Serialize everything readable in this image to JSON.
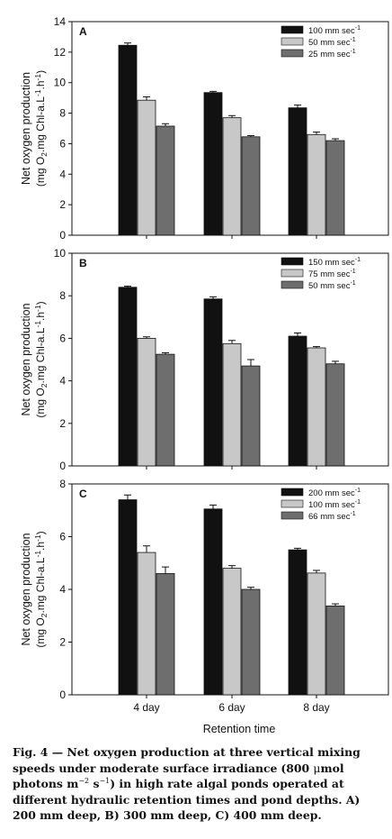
{
  "figure": {
    "ylabel_line1": "Net oxygen production",
    "ylabel_line2": "(mg O",
    "ylabel_sub": "2",
    "ylabel_line2b": ".mg Chl-a.L",
    "ylabel_sup1": "-1",
    "ylabel_line2c": ".h",
    "ylabel_sup2": "-1",
    "ylabel_end": ")",
    "xlabel": "Retention time"
  },
  "caption": {
    "label": "Fig. 4",
    "dash": " — ",
    "line1": "Net oxygen production at three vertical mixing speeds under moderate surface irradiance",
    "line2_pre": "(800 ",
    "mu": "μ",
    "line2_mid": "mol photons m",
    "sup_a": "−2",
    "s": " s",
    "sup_b": "−1",
    "line2_post": ") in high rate algal ponds operated at different hydraulic retention times and pond depths. A) 200 mm deep, B) 300 mm deep, C) 400 mm deep."
  },
  "chart_data": [
    {
      "type": "bar",
      "panel": "A",
      "categories": [
        "4 day",
        "6 day",
        "8 day"
      ],
      "ylim": [
        0,
        14
      ],
      "yticks": [
        0,
        2,
        4,
        6,
        8,
        10,
        12,
        14
      ],
      "legend_position": "top-right",
      "series": [
        {
          "name": "100 mm sec",
          "name_sup": "-1",
          "color": "#111111",
          "values": [
            12.45,
            9.35,
            8.35
          ],
          "errors": [
            0.15,
            0.08,
            0.18
          ]
        },
        {
          "name": "50 mm sec",
          "name_sup": "-1",
          "color": "#c8c8c8",
          "values": [
            8.85,
            7.7,
            6.6
          ],
          "errors": [
            0.22,
            0.14,
            0.16
          ]
        },
        {
          "name": "25 mm sec",
          "name_sup": "-1",
          "color": "#6e6e6e",
          "values": [
            7.15,
            6.45,
            6.2
          ],
          "errors": [
            0.16,
            0.08,
            0.12
          ]
        }
      ]
    },
    {
      "type": "bar",
      "panel": "B",
      "categories": [
        "4 day",
        "6 day",
        "8 day"
      ],
      "ylim": [
        0,
        10
      ],
      "yticks": [
        0,
        2,
        4,
        6,
        8,
        10
      ],
      "legend_position": "top-right",
      "series": [
        {
          "name": "150 mm sec",
          "name_sup": "-1",
          "color": "#111111",
          "values": [
            8.4,
            7.85,
            6.1
          ],
          "errors": [
            0.05,
            0.1,
            0.15
          ]
        },
        {
          "name": "75 mm sec",
          "name_sup": "-1",
          "color": "#c8c8c8",
          "values": [
            6.0,
            5.75,
            5.55
          ],
          "errors": [
            0.07,
            0.15,
            0.06
          ]
        },
        {
          "name": "50 mm sec",
          "name_sup": "-1",
          "color": "#6e6e6e",
          "values": [
            5.25,
            4.7,
            4.8
          ],
          "errors": [
            0.07,
            0.3,
            0.12
          ]
        }
      ]
    },
    {
      "type": "bar",
      "panel": "C",
      "categories": [
        "4 day",
        "6 day",
        "8 day"
      ],
      "ylim": [
        0,
        8
      ],
      "yticks": [
        0,
        2,
        4,
        6,
        8
      ],
      "legend_position": "top-right",
      "series": [
        {
          "name": "200 mm sec",
          "name_sup": "-1",
          "color": "#111111",
          "values": [
            7.4,
            7.05,
            5.5
          ],
          "errors": [
            0.18,
            0.15,
            0.06
          ]
        },
        {
          "name": "100 mm sec",
          "name_sup": "-1",
          "color": "#c8c8c8",
          "values": [
            5.4,
            4.8,
            4.62
          ],
          "errors": [
            0.25,
            0.1,
            0.1
          ]
        },
        {
          "name": "66 mm sec",
          "name_sup": "-1",
          "color": "#6e6e6e",
          "values": [
            4.6,
            4.0,
            3.37
          ],
          "errors": [
            0.25,
            0.08,
            0.08
          ]
        }
      ]
    }
  ]
}
